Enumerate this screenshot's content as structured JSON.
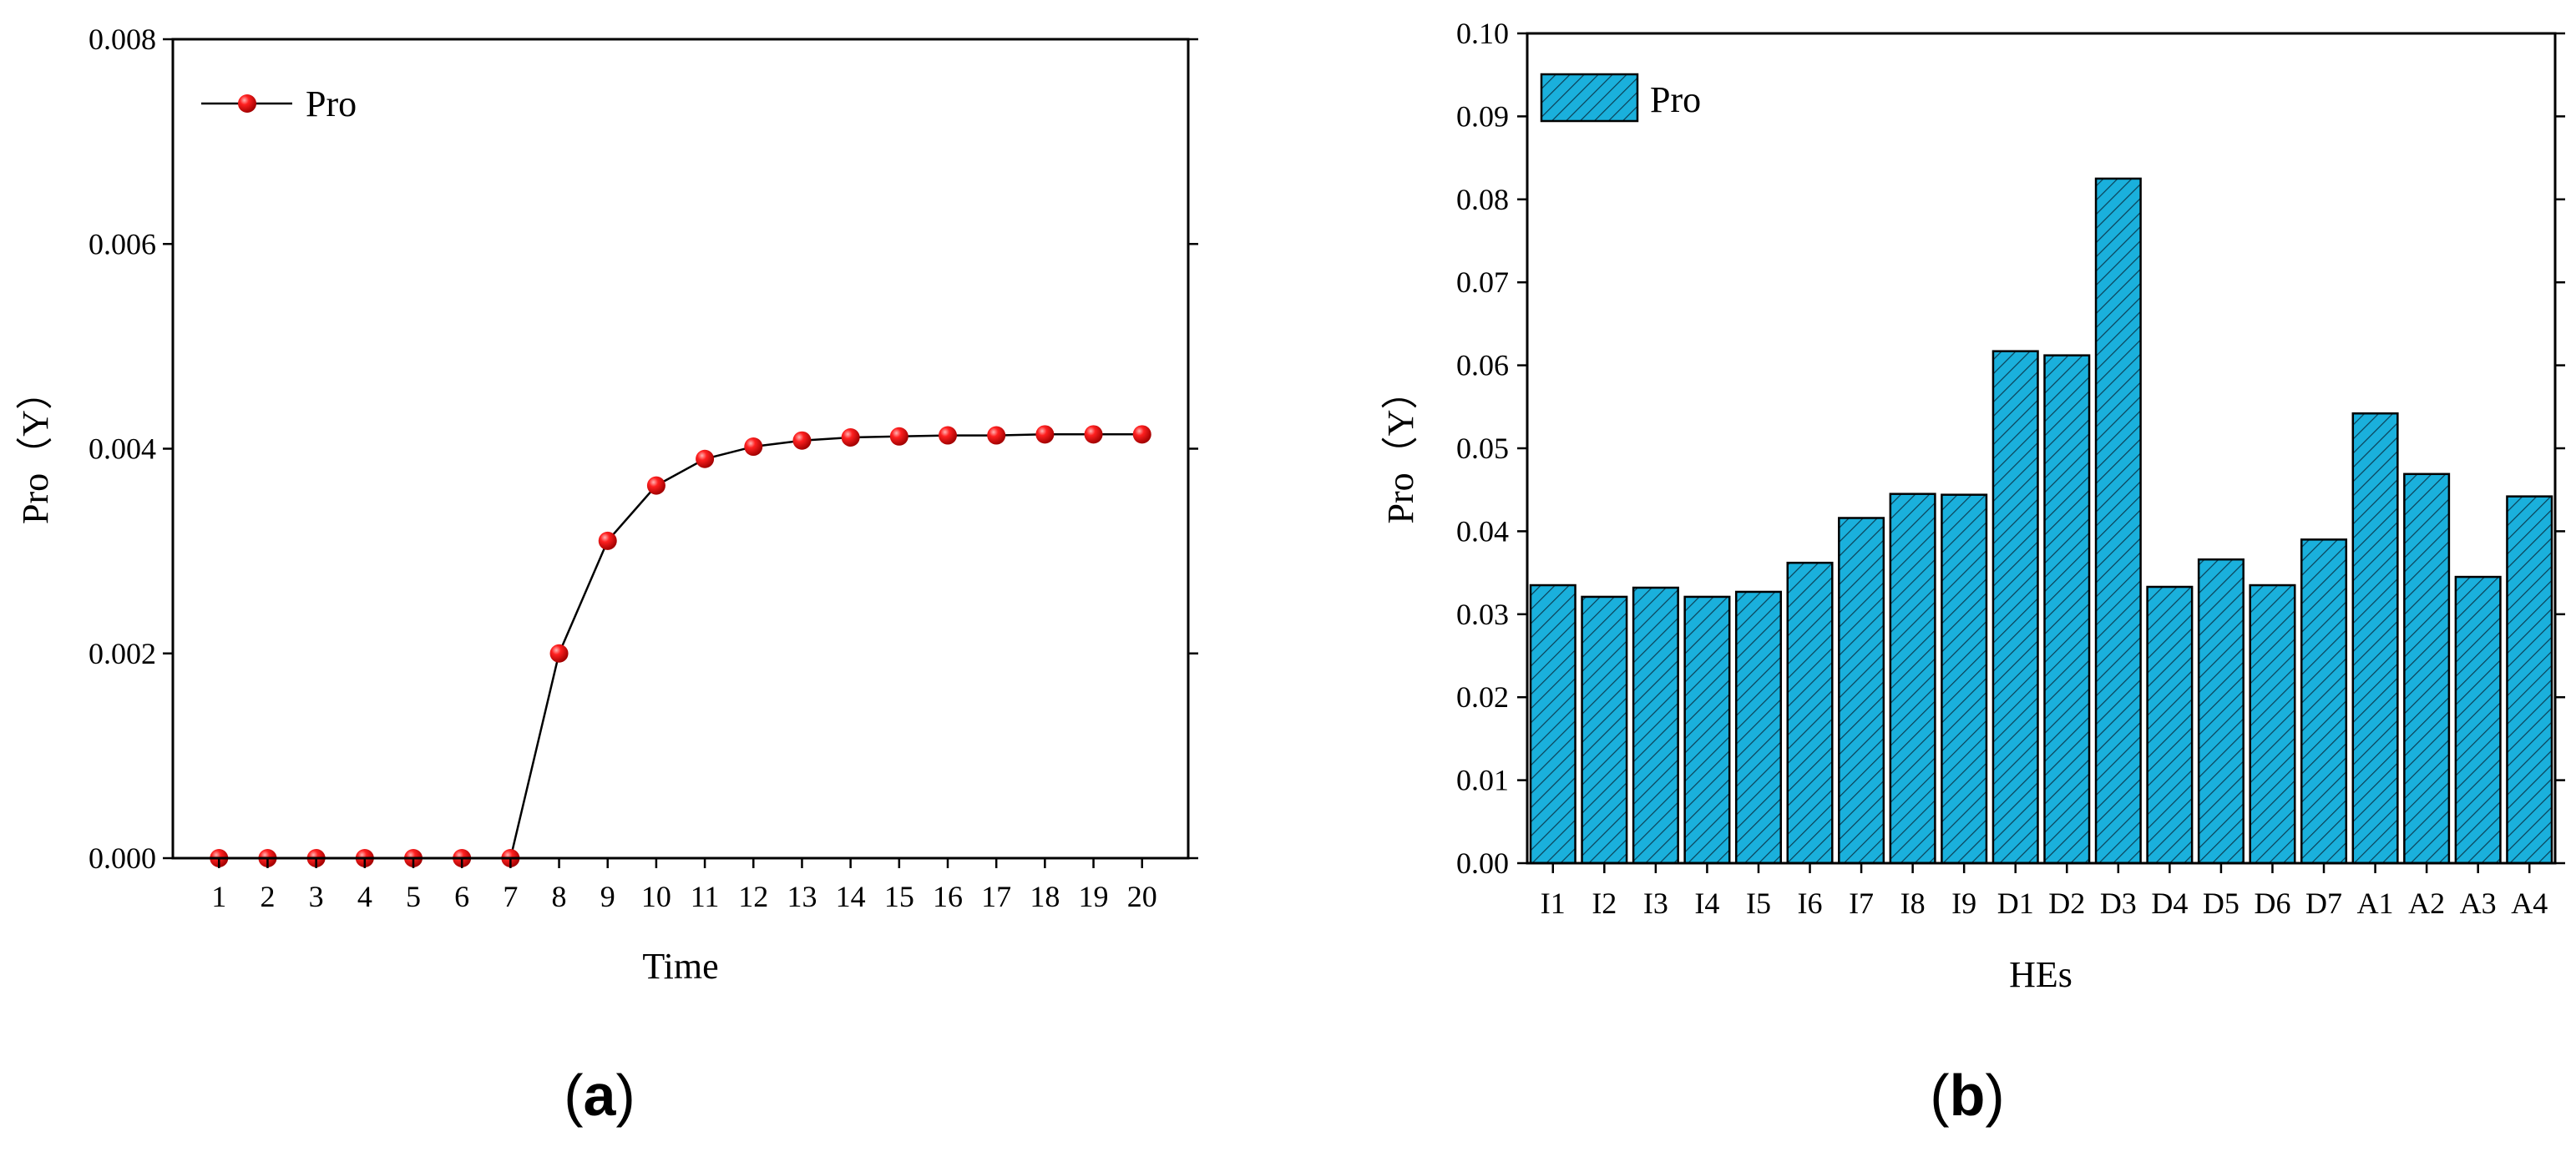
{
  "chart_data": [
    {
      "type": "line",
      "panel_label": "a",
      "xlabel": "Time",
      "ylabel": "Pro（Y）",
      "x": [
        1,
        2,
        3,
        4,
        5,
        6,
        7,
        8,
        9,
        10,
        11,
        12,
        13,
        14,
        15,
        16,
        17,
        18,
        19,
        20
      ],
      "series": [
        {
          "name": "Pro",
          "color": "#e8000b",
          "marker": "circle",
          "values": [
            0,
            0,
            0,
            0,
            0,
            0,
            0,
            0.002,
            0.0031,
            0.00364,
            0.0039,
            0.00402,
            0.00408,
            0.00411,
            0.00412,
            0.00413,
            0.00413,
            0.00414,
            0.00414,
            0.00414
          ]
        }
      ],
      "xlim": [
        0.05,
        20.95
      ],
      "ylim": [
        0,
        0.008
      ],
      "yticks": [
        "0.000",
        "0.002",
        "0.004",
        "0.006",
        "0.008"
      ],
      "xticks": [
        "1",
        "2",
        "3",
        "4",
        "5",
        "6",
        "7",
        "8",
        "9",
        "10",
        "11",
        "12",
        "13",
        "14",
        "15",
        "16",
        "17",
        "18",
        "19",
        "20"
      ],
      "grid": false,
      "legend": "top-left"
    },
    {
      "type": "bar",
      "panel_label": "b",
      "xlabel": "HEs",
      "ylabel": "Pro（Y）",
      "categories": [
        "I1",
        "I2",
        "I3",
        "I4",
        "I5",
        "I6",
        "I7",
        "I8",
        "I9",
        "D1",
        "D2",
        "D3",
        "D4",
        "D5",
        "D6",
        "D7",
        "A1",
        "A2",
        "A3",
        "A4"
      ],
      "series": [
        {
          "name": "Pro",
          "color": "#1ab0dc",
          "pattern": "diagonal-hatch",
          "values": [
            0.0335,
            0.0321,
            0.0332,
            0.0321,
            0.0327,
            0.0362,
            0.0416,
            0.0445,
            0.0444,
            0.0617,
            0.0612,
            0.0825,
            0.0333,
            0.0366,
            0.0335,
            0.039,
            0.0542,
            0.0469,
            0.0345,
            0.0442
          ]
        }
      ],
      "ylim": [
        0,
        0.1
      ],
      "yticks": [
        "0.00",
        "0.01",
        "0.02",
        "0.03",
        "0.04",
        "0.05",
        "0.06",
        "0.07",
        "0.08",
        "0.09",
        "0.10"
      ],
      "grid": false,
      "legend": "top-left"
    }
  ]
}
